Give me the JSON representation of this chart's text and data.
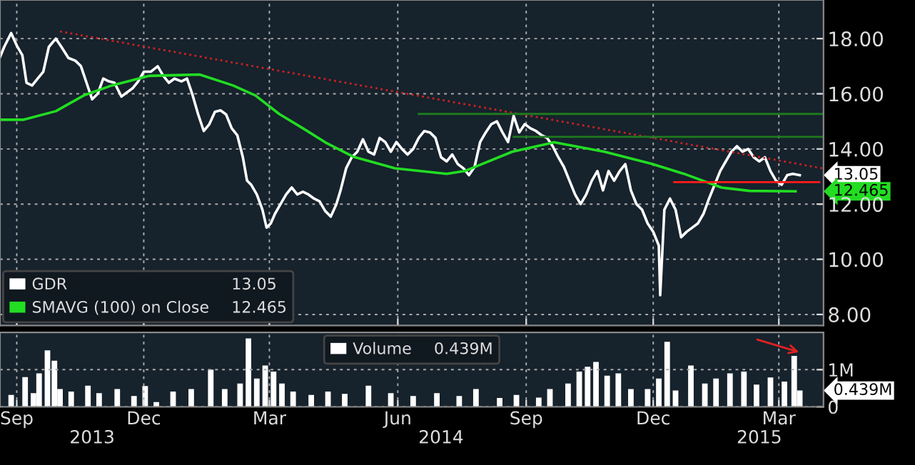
{
  "chart_data": [
    {
      "type": "line",
      "xlim": [
        "2013-08-20",
        "2015-04-02"
      ],
      "ylim": [
        7.6,
        19.4
      ],
      "xticks": [
        {
          "value": "2013-09-01",
          "label": null
        },
        {
          "value": "2013-12-01",
          "label": null
        },
        {
          "value": "2014-03-01",
          "label": null
        },
        {
          "value": "2014-06-01",
          "label": null
        },
        {
          "value": "2014-09-01",
          "label": null
        },
        {
          "value": "2014-12-01",
          "label": null
        },
        {
          "value": "2015-03-01",
          "label": null
        }
      ],
      "yticks": [
        {
          "value": 8,
          "label": "8.00"
        },
        {
          "value": 10,
          "label": "10.00"
        },
        {
          "value": 12,
          "label": "12.00"
        },
        {
          "value": 14,
          "label": "14.00"
        },
        {
          "value": 16,
          "label": "16.00"
        },
        {
          "value": 18,
          "label": "18.00"
        }
      ],
      "tick_labels": "y",
      "grid": true,
      "legend": "bottom left",
      "series": [
        {
          "name": "GDR",
          "color": "#ffffff",
          "line_style": "solid",
          "x": [
            "2013-08-20",
            "2013-08-23",
            "2013-08-28",
            "2013-09-01",
            "2013-09-05",
            "2013-09-08",
            "2013-09-12",
            "2013-09-16",
            "2013-09-20",
            "2013-09-24",
            "2013-09-29",
            "2013-10-03",
            "2013-10-08",
            "2013-10-13",
            "2013-10-17",
            "2013-10-21",
            "2013-10-25",
            "2013-10-29",
            "2013-11-02",
            "2013-11-06",
            "2013-11-10",
            "2013-11-15",
            "2013-11-19",
            "2013-11-23",
            "2013-11-27",
            "2013-12-01",
            "2013-12-06",
            "2013-12-11",
            "2013-12-15",
            "2013-12-19",
            "2013-12-23",
            "2013-12-28",
            "2014-01-01",
            "2014-01-05",
            "2014-01-09",
            "2014-01-13",
            "2014-01-17",
            "2014-01-21",
            "2014-01-25",
            "2014-01-29",
            "2014-02-02",
            "2014-02-06",
            "2014-02-10",
            "2014-02-13",
            "2014-02-16",
            "2014-02-20",
            "2014-02-24",
            "2014-02-27",
            "2014-03-02",
            "2014-03-05",
            "2014-03-09",
            "2014-03-13",
            "2014-03-17",
            "2014-03-21",
            "2014-03-25",
            "2014-03-29",
            "2014-04-02",
            "2014-04-06",
            "2014-04-10",
            "2014-04-14",
            "2014-04-18",
            "2014-04-21",
            "2014-04-25",
            "2014-04-29",
            "2014-05-03",
            "2014-05-07",
            "2014-05-11",
            "2014-05-15",
            "2014-05-19",
            "2014-05-23",
            "2014-05-27",
            "2014-05-31",
            "2014-06-04",
            "2014-06-08",
            "2014-06-12",
            "2014-06-16",
            "2014-06-20",
            "2014-06-24",
            "2014-06-28",
            "2014-07-02",
            "2014-07-06",
            "2014-07-10",
            "2014-07-14",
            "2014-07-18",
            "2014-07-22",
            "2014-07-26",
            "2014-07-30",
            "2014-08-03",
            "2014-08-07",
            "2014-08-11",
            "2014-08-15",
            "2014-08-19",
            "2014-08-23",
            "2014-08-27",
            "2014-08-31",
            "2014-09-04",
            "2014-09-08",
            "2014-09-12",
            "2014-09-16",
            "2014-09-20",
            "2014-09-24",
            "2014-09-28",
            "2014-10-02",
            "2014-10-06",
            "2014-10-10",
            "2014-10-14",
            "2014-10-18",
            "2014-10-22",
            "2014-10-26",
            "2014-10-30",
            "2014-11-03",
            "2014-11-07",
            "2014-11-11",
            "2014-11-15",
            "2014-11-19",
            "2014-11-23",
            "2014-11-27",
            "2014-12-01",
            "2014-12-05",
            "2014-12-06",
            "2014-12-09",
            "2014-12-13",
            "2014-12-17",
            "2014-12-21",
            "2014-12-25",
            "2014-12-29",
            "2015-01-02",
            "2015-01-06",
            "2015-01-10",
            "2015-01-14",
            "2015-01-18",
            "2015-01-22",
            "2015-01-26",
            "2015-01-30",
            "2015-02-03",
            "2015-02-07",
            "2015-02-11",
            "2015-02-15",
            "2015-02-19",
            "2015-02-23",
            "2015-02-27",
            "2015-03-03",
            "2015-03-07",
            "2015-03-11",
            "2015-03-16"
          ],
          "values": [
            17.33,
            17.7,
            18.2,
            17.75,
            17.4,
            16.4,
            16.3,
            16.55,
            16.8,
            17.7,
            18.0,
            17.7,
            17.3,
            17.2,
            17.0,
            16.4,
            15.8,
            16.0,
            16.55,
            16.45,
            16.4,
            15.9,
            16.05,
            16.2,
            16.45,
            16.8,
            16.8,
            17.0,
            16.65,
            16.4,
            16.55,
            16.45,
            16.55,
            15.95,
            15.25,
            14.65,
            14.9,
            15.35,
            15.4,
            15.25,
            14.75,
            14.5,
            13.7,
            12.85,
            12.7,
            12.35,
            11.8,
            11.15,
            11.3,
            11.65,
            12.0,
            12.35,
            12.6,
            12.35,
            12.45,
            12.35,
            12.2,
            12.1,
            11.75,
            11.55,
            12.0,
            12.5,
            13.3,
            13.7,
            13.9,
            14.35,
            13.9,
            13.8,
            14.4,
            14.25,
            13.9,
            14.25,
            14.0,
            13.8,
            14.0,
            14.4,
            14.65,
            14.6,
            14.4,
            13.7,
            13.55,
            13.8,
            13.45,
            13.3,
            13.05,
            13.35,
            14.25,
            14.6,
            14.9,
            15.0,
            14.6,
            14.25,
            15.2,
            14.6,
            14.9,
            14.75,
            14.65,
            14.5,
            14.4,
            14.1,
            13.7,
            13.35,
            12.85,
            12.35,
            12.0,
            12.35,
            12.85,
            13.2,
            12.5,
            13.2,
            12.85,
            13.2,
            13.45,
            12.5,
            12.0,
            11.8,
            11.3,
            11.0,
            10.5,
            8.7,
            11.8,
            12.2,
            11.8,
            10.8,
            11.0,
            11.15,
            11.3,
            11.65,
            12.2,
            12.7,
            13.2,
            13.55,
            13.9,
            14.1,
            13.9,
            14.0,
            13.7,
            13.55,
            13.7,
            13.2,
            12.85,
            12.7,
            13.05,
            13.1,
            13.05
          ]
        },
        {
          "name": "SMAVG (100) on Close",
          "color": "#22dd22",
          "line_style": "solid",
          "x": [
            "2013-08-20",
            "2013-09-06",
            "2013-09-29",
            "2013-10-19",
            "2013-11-08",
            "2013-12-05",
            "2014-01-10",
            "2014-02-03",
            "2014-02-19",
            "2014-03-08",
            "2014-03-25",
            "2014-04-10",
            "2014-04-30",
            "2014-05-30",
            "2014-07-06",
            "2014-07-19",
            "2014-08-22",
            "2014-09-21",
            "2014-10-27",
            "2014-11-30",
            "2014-12-23",
            "2015-01-19",
            "2015-02-08",
            "2015-03-13"
          ],
          "values": [
            15.06,
            15.06,
            15.37,
            15.94,
            16.3,
            16.65,
            16.7,
            16.3,
            15.94,
            15.27,
            14.75,
            14.24,
            13.72,
            13.3,
            13.1,
            13.2,
            13.9,
            14.24,
            13.9,
            13.46,
            13.1,
            12.6,
            12.48,
            12.465
          ]
        },
        {
          "color": "#cc2222",
          "line_style": "dotted",
          "x": [
            "2013-10-02",
            "2015-04-01"
          ],
          "values": [
            18.26,
            13.3
          ]
        },
        {
          "color": "#ff1a1a",
          "line_style": "solid",
          "x": [
            "2014-12-16",
            "2015-03-30"
          ],
          "values": [
            12.8,
            12.8
          ]
        },
        {
          "color": "#1f7a1f",
          "line_style": "solid",
          "x": [
            "2014-06-16",
            "2015-04-01"
          ],
          "values": [
            15.27,
            15.27
          ]
        },
        {
          "color": "#1f7a1f",
          "line_style": "solid",
          "x": [
            "2014-08-23",
            "2015-04-01"
          ],
          "values": [
            14.44,
            14.44
          ]
        }
      ],
      "annotations": [
        "13.05",
        "12.465",
        {
          "text": "13.05",
          "x": "2015-03-16",
          "y": 13.05
        },
        {
          "text": "12.465",
          "x": "2015-03-13",
          "y": 12.465
        }
      ]
    },
    {
      "type": "bar",
      "xlim": [
        "2013-08-20",
        "2015-04-02"
      ],
      "ylim": [
        0,
        2.0
      ],
      "xticks": [
        {
          "value": "2013-09-01",
          "label": "Sep"
        },
        {
          "value": "2013-12-01",
          "label": "Dec"
        },
        {
          "value": "2014-03-01",
          "label": "Mar"
        },
        {
          "value": "2014-06-01",
          "label": "Jun"
        },
        {
          "value": "2014-09-01",
          "label": "Sep"
        },
        {
          "value": "2014-12-01",
          "label": "Dec"
        },
        {
          "value": "2015-03-01",
          "label": "Mar"
        }
      ],
      "x2lim": [
        "2013-08-20",
        "2015-04-02"
      ],
      "x2ticks": [
        {
          "value": "2013-10-25",
          "label": "2013"
        },
        {
          "value": "2014-07-02",
          "label": "2014"
        },
        {
          "value": "2015-02-15",
          "label": "2015"
        }
      ],
      "yticks": [
        {
          "value": 0,
          "label": "0"
        },
        {
          "value": 1,
          "label": "1M"
        }
      ],
      "grid": true,
      "legend": "top",
      "series": [
        {
          "name": "Volume",
          "color": "#ffffff",
          "x": [
            "2013-08-28",
            "2013-09-07",
            "2013-09-13",
            "2013-09-17",
            "2013-09-23",
            "2013-09-28",
            "2013-10-02",
            "2013-10-10",
            "2013-10-22",
            "2013-10-30",
            "2013-11-12",
            "2013-11-24",
            "2013-12-02",
            "2013-12-10",
            "2013-12-22",
            "2014-01-04",
            "2014-01-18",
            "2014-01-28",
            "2014-02-08",
            "2014-02-14",
            "2014-02-20",
            "2014-02-26",
            "2014-03-04",
            "2014-03-10",
            "2014-03-18",
            "2014-03-31",
            "2014-04-12",
            "2014-04-24",
            "2014-05-11",
            "2014-05-27",
            "2014-06-12",
            "2014-06-29",
            "2014-07-15",
            "2014-07-27",
            "2014-08-13",
            "2014-08-25",
            "2014-09-10",
            "2014-09-18",
            "2014-10-01",
            "2014-10-09",
            "2014-10-15",
            "2014-10-21",
            "2014-10-29",
            "2014-11-06",
            "2014-11-15",
            "2014-11-27",
            "2014-12-05",
            "2014-12-11",
            "2014-12-17",
            "2014-12-28",
            "2015-01-07",
            "2015-01-15",
            "2015-01-25",
            "2015-02-04",
            "2015-02-13",
            "2015-02-23",
            "2015-03-05",
            "2015-03-12",
            "2015-03-16"
          ],
          "values": [
            0.32,
            0.8,
            0.37,
            0.9,
            1.52,
            1.24,
            0.48,
            0.41,
            0.57,
            0.37,
            0.48,
            0.29,
            0.56,
            0.13,
            0.41,
            0.48,
            1.0,
            0.48,
            0.63,
            1.84,
            0.76,
            1.11,
            0.95,
            0.63,
            0.41,
            0.32,
            0.41,
            0.35,
            0.57,
            0.37,
            0.29,
            0.37,
            0.29,
            0.48,
            0.24,
            0.32,
            0.25,
            0.48,
            0.63,
            0.95,
            1.08,
            1.21,
            0.84,
            0.9,
            0.48,
            0.48,
            0.76,
            1.75,
            0.44,
            1.11,
            0.63,
            0.76,
            0.9,
            0.95,
            0.6,
            0.79,
            0.68,
            1.37,
            0.439
          ]
        }
      ],
      "annotations": [
        "0.439M",
        {
          "text": "0.439M",
          "x": "2015-03-16",
          "y": 0.439
        }
      ]
    }
  ]
}
